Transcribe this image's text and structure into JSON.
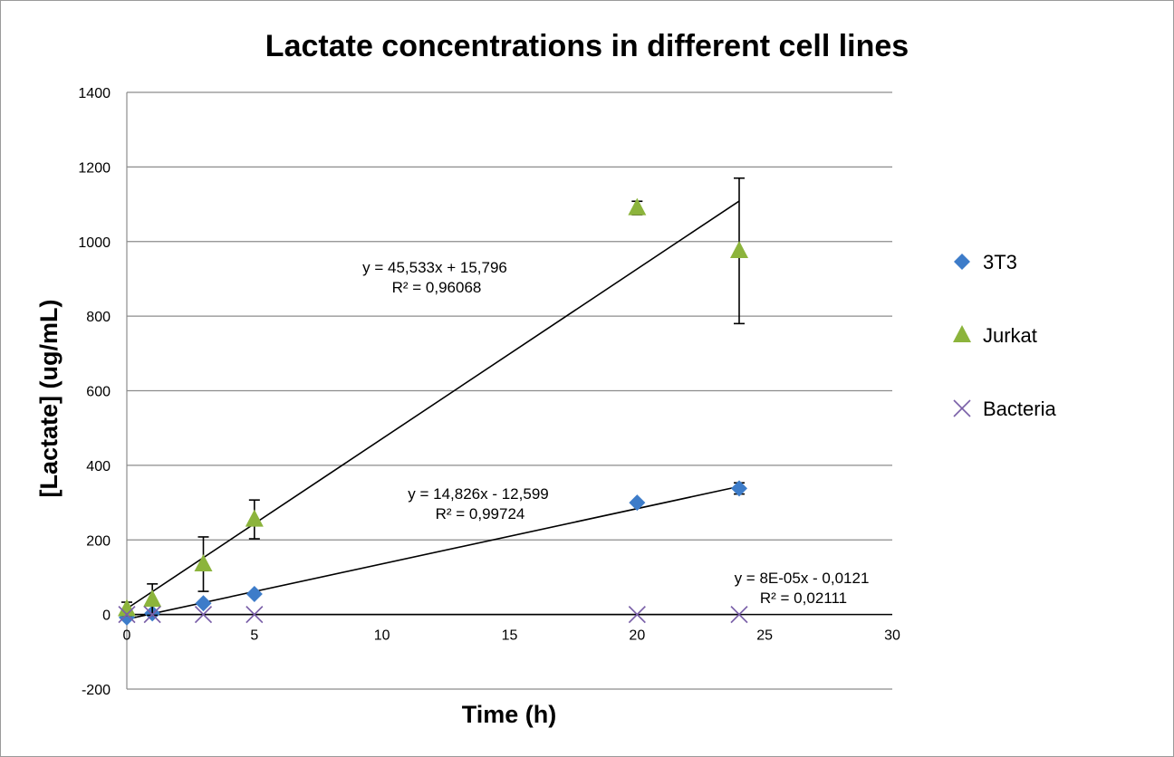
{
  "chart_data": {
    "type": "scatter",
    "title": "Lactate concentrations in different cell lines",
    "xlabel": "Time (h)",
    "ylabel": "[Lactate] (ug/mL)",
    "xlim": [
      0,
      30
    ],
    "ylim": [
      -200,
      1400
    ],
    "xticks": [
      0,
      5,
      10,
      15,
      20,
      25,
      30
    ],
    "yticks": [
      -200,
      0,
      200,
      400,
      600,
      800,
      1000,
      1200,
      1400
    ],
    "grid": "horizontal",
    "legend_position": "right",
    "series": [
      {
        "name": "3T3",
        "marker": "diamond",
        "color": "#3d7cc9",
        "x": [
          0,
          1,
          3,
          5,
          20,
          24
        ],
        "y": [
          -8,
          3,
          30,
          55,
          300,
          338
        ],
        "err": [
          0,
          0,
          0,
          0,
          0,
          15
        ],
        "trendline": {
          "slope": 14.826,
          "intercept": -12.599,
          "x_range": [
            0,
            24
          ],
          "equation": "y = 14,826x - 12,599",
          "r2": "R² = 0,99724"
        }
      },
      {
        "name": "Jurkat",
        "marker": "triangle",
        "color": "#8cb43c",
        "x": [
          0,
          1,
          3,
          5,
          20,
          24
        ],
        "y": [
          15,
          40,
          135,
          255,
          1090,
          975
        ],
        "err": [
          18,
          42,
          73,
          52,
          18,
          195
        ],
        "trendline": {
          "slope": 45.533,
          "intercept": 15.796,
          "x_range": [
            0,
            24
          ],
          "equation": "y = 45,533x + 15,796",
          "r2": "R² = 0,96068"
        }
      },
      {
        "name": "Bacteria",
        "marker": "x",
        "color": "#7a5fa8",
        "x": [
          0,
          1,
          3,
          5,
          20,
          24
        ],
        "y": [
          0,
          0,
          0,
          0,
          0,
          0
        ],
        "err": [
          0,
          0,
          0,
          0,
          0,
          0
        ],
        "trendline": {
          "slope": 8e-05,
          "intercept": -0.0121,
          "x_range": [
            0,
            24
          ],
          "equation": "y = 8E-05x - 0,0121",
          "r2": "R² = 0,02111"
        }
      }
    ]
  }
}
